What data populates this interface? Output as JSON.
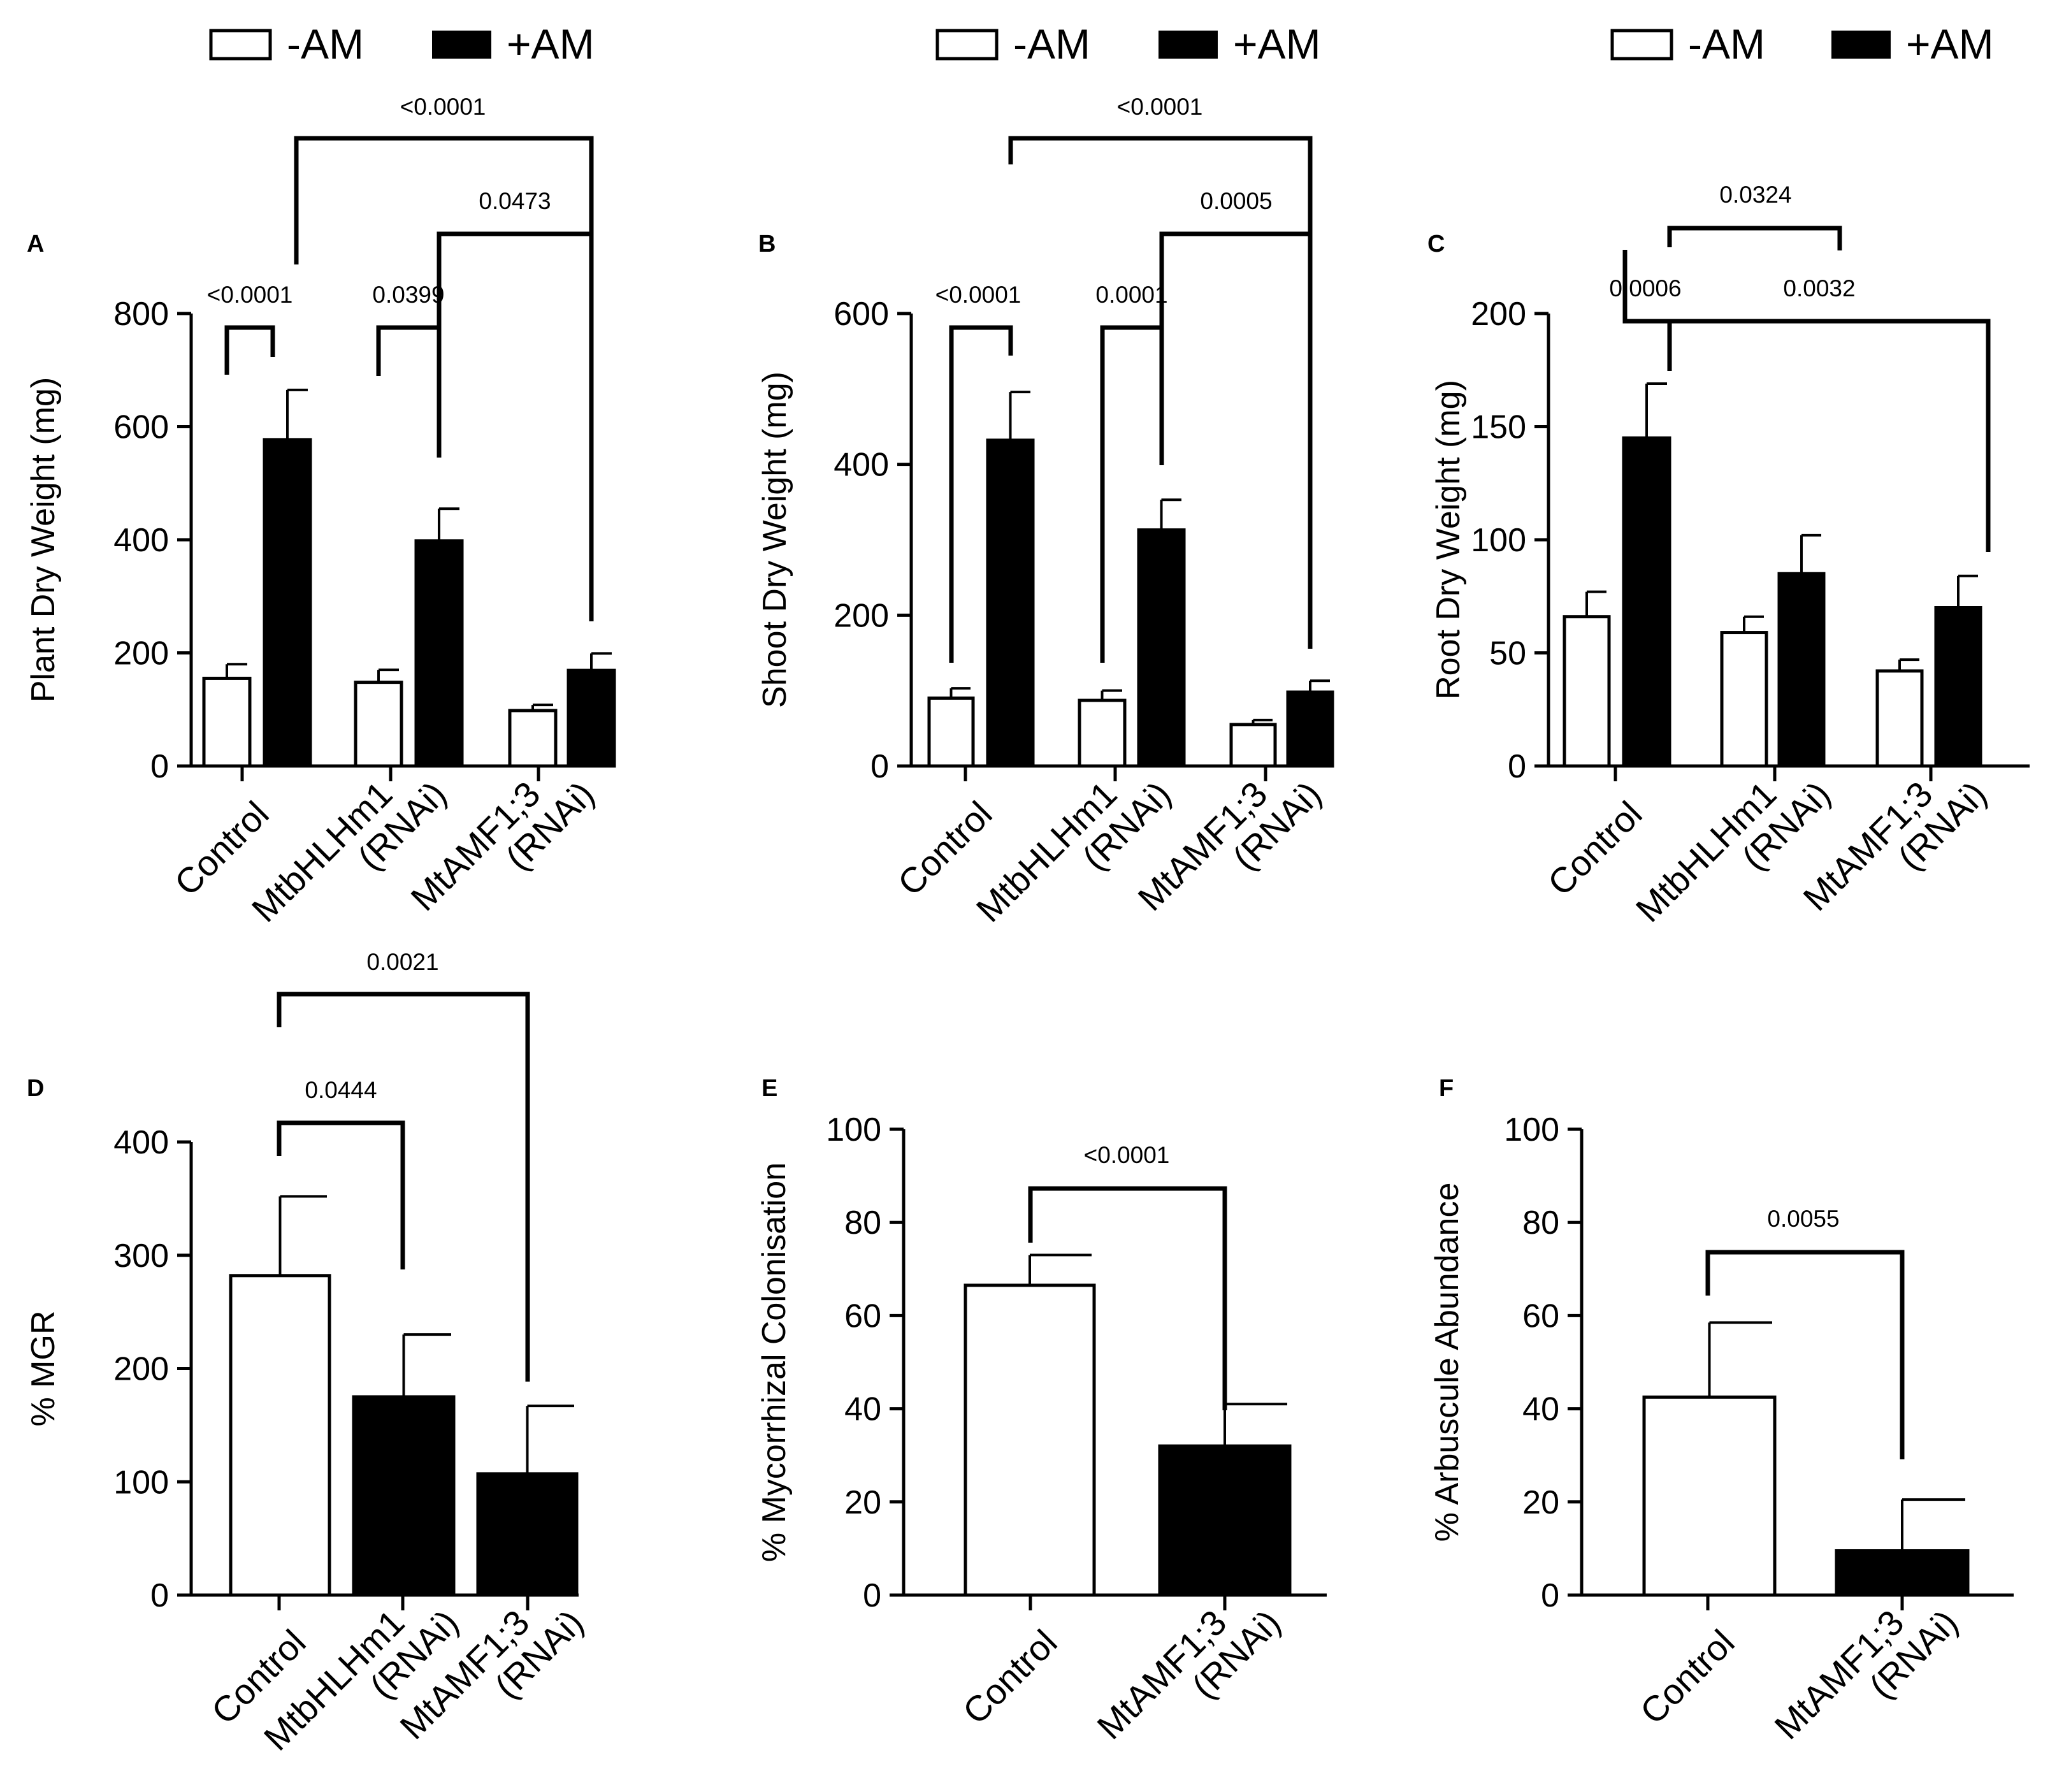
{
  "legend": {
    "minus": "-AM",
    "plus": "+AM"
  },
  "colors": {
    "minus_fill": "#ffffff",
    "plus_fill": "#000000",
    "stroke": "#000000"
  },
  "chart_data": [
    {
      "panel": "A",
      "type": "bar",
      "ylabel": "Plant Dry Weight (mg)",
      "ylim": [
        0,
        800
      ],
      "yticks": [
        "0",
        "200",
        "400",
        "600",
        "800"
      ],
      "categories": [
        [
          "Control"
        ],
        [
          "MtbHLHm1",
          "(RNAi)"
        ],
        [
          "MtAMF1;3",
          "(RNAi)"
        ]
      ],
      "series": [
        {
          "name": "-AM",
          "values": [
            155,
            148,
            98
          ],
          "errors": [
            25,
            22,
            10
          ]
        },
        {
          "name": "+AM",
          "values": [
            577,
            398,
            169
          ],
          "errors": [
            88,
            57,
            30
          ]
        }
      ],
      "significance": [
        {
          "label": "<0.0001",
          "from": "Control:-AM",
          "to": "Control:+AM"
        },
        {
          "label": "0.0399",
          "from": "MtbHLHm1 (RNAi):-AM",
          "to": "MtbHLHm1 (RNAi):+AM"
        },
        {
          "label": "0.0473",
          "from": "MtbHLHm1 (RNAi):+AM",
          "to": "MtAMF1;3 (RNAi):+AM"
        },
        {
          "label": "<0.0001",
          "from": "Control:+AM",
          "to": "MtAMF1;3 (RNAi):+AM"
        }
      ]
    },
    {
      "panel": "B",
      "type": "bar",
      "ylabel": "Shoot Dry Weight (mg)",
      "ylim": [
        0,
        600
      ],
      "yticks": [
        "0",
        "200",
        "400",
        "600"
      ],
      "categories": [
        [
          "Control"
        ],
        [
          "MtbHLHm1",
          "(RNAi)"
        ],
        [
          "MtAMF1;3",
          "(RNAi)"
        ]
      ],
      "series": [
        {
          "name": "-AM",
          "values": [
            90,
            87,
            55
          ],
          "errors": [
            13,
            13,
            6
          ]
        },
        {
          "name": "+AM",
          "values": [
            432,
            313,
            98
          ],
          "errors": [
            64,
            40,
            15
          ]
        }
      ],
      "significance": [
        {
          "label": "<0.0001",
          "from": "Control:-AM",
          "to": "Control:+AM"
        },
        {
          "label": "0.0001",
          "from": "MtbHLHm1 (RNAi):-AM",
          "to": "MtbHLHm1 (RNAi):+AM"
        },
        {
          "label": "0.0005",
          "from": "MtbHLHm1 (RNAi):+AM",
          "to": "MtAMF1;3 (RNAi):+AM"
        },
        {
          "label": "<0.0001",
          "from": "Control:+AM",
          "to": "MtAMF1;3 (RNAi):+AM"
        }
      ]
    },
    {
      "panel": "C",
      "type": "bar",
      "ylabel": "Root Dry Weight (mg)",
      "ylim": [
        0,
        200
      ],
      "yticks": [
        "0",
        "50",
        "100",
        "150",
        "200"
      ],
      "categories": [
        [
          "Control"
        ],
        [
          "MtbHLHm1",
          "(RNAi)"
        ],
        [
          "MtAMF1;3",
          "(RNAi)"
        ]
      ],
      "series": [
        {
          "name": "-AM",
          "values": [
            66,
            59,
            42
          ],
          "errors": [
            11,
            7,
            5
          ]
        },
        {
          "name": "+AM",
          "values": [
            145,
            85,
            70
          ],
          "errors": [
            24,
            17,
            14
          ]
        }
      ],
      "significance": [
        {
          "label": "0.0006",
          "from": "Control:-AM",
          "to": "Control:+AM"
        },
        {
          "label": "0.0032",
          "from": "Control:+AM",
          "to": "MtAMF1;3 (RNAi):+AM"
        },
        {
          "label": "0.0324",
          "from": "Control:+AM",
          "to": "MtbHLHm1 (RNAi):+AM"
        }
      ]
    },
    {
      "panel": "D",
      "type": "bar",
      "ylabel": "% MGR",
      "ylim": [
        0,
        400
      ],
      "yticks": [
        "0",
        "100",
        "200",
        "300",
        "400"
      ],
      "categories": [
        [
          "Control"
        ],
        [
          "MtbHLHm1",
          "(RNAi)"
        ],
        [
          "MtAMF1;3",
          "(RNAi)"
        ]
      ],
      "values": [
        282,
        175,
        107
      ],
      "errors": [
        70,
        55,
        60
      ],
      "fills": [
        "white",
        "black",
        "black"
      ],
      "significance": [
        {
          "label": "0.0444",
          "from": "Control",
          "to": "MtbHLHm1 (RNAi)"
        },
        {
          "label": "0.0021",
          "from": "Control",
          "to": "MtAMF1;3 (RNAi)"
        }
      ]
    },
    {
      "panel": "E",
      "type": "bar",
      "ylabel": "% Mycorrhizal Colonisation",
      "ylim": [
        0,
        100
      ],
      "yticks": [
        "0",
        "20",
        "40",
        "60",
        "80",
        "100"
      ],
      "categories": [
        [
          "Control"
        ],
        [
          "MtAMF1;3",
          "(RNAi)"
        ]
      ],
      "values": [
        66.5,
        32
      ],
      "errors": [
        6.5,
        9
      ],
      "fills": [
        "white",
        "black"
      ],
      "significance": [
        {
          "label": "<0.0001",
          "from": "Control",
          "to": "MtAMF1;3 (RNAi)"
        }
      ]
    },
    {
      "panel": "F",
      "type": "bar",
      "ylabel": "% Arbuscule Abundance",
      "ylim": [
        0,
        100
      ],
      "yticks": [
        "0",
        "20",
        "40",
        "60",
        "80",
        "100"
      ],
      "categories": [
        [
          "Control"
        ],
        [
          "MtAMF1;3",
          "(RNAi)"
        ]
      ],
      "values": [
        42.5,
        9.5
      ],
      "errors": [
        16,
        11
      ],
      "fills": [
        "white",
        "black"
      ],
      "significance": [
        {
          "label": "0.0055",
          "from": "Control",
          "to": "MtAMF1;3 (RNAi)"
        }
      ]
    }
  ]
}
